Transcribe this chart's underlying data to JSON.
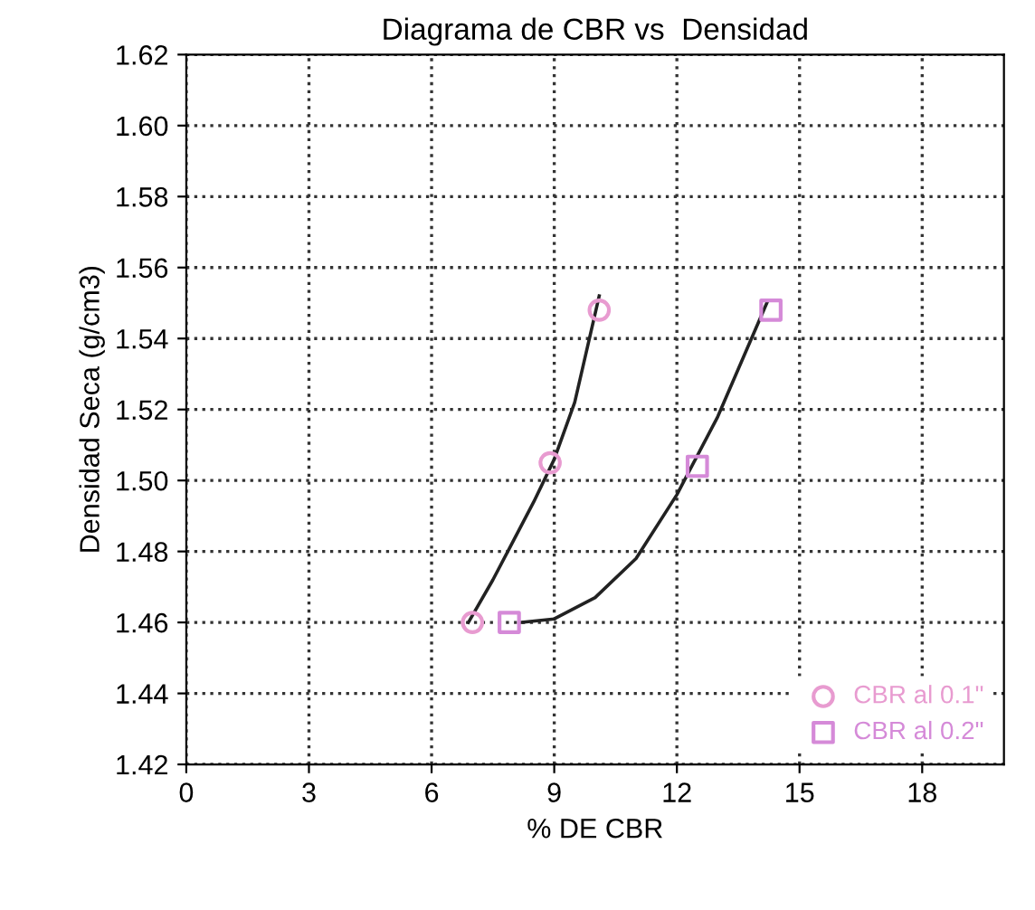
{
  "chart_data": {
    "type": "scatter",
    "title": "Diagrama de CBR vs  Densidad",
    "xlabel": "% DE CBR",
    "ylabel": "Densidad Seca (g/cm3)",
    "xlim": [
      0,
      20
    ],
    "xticks": [
      0,
      3,
      6,
      9,
      12,
      15,
      18
    ],
    "ylim": [
      1.42,
      1.62
    ],
    "yticks": [
      {
        "value": 1.42,
        "label": "1.42"
      },
      {
        "value": 1.44,
        "label": "1.44"
      },
      {
        "value": 1.46,
        "label": "1.46"
      },
      {
        "value": 1.48,
        "label": "1.48"
      },
      {
        "value": 1.5,
        "label": "1.50"
      },
      {
        "value": 1.52,
        "label": "1.52"
      },
      {
        "value": 1.54,
        "label": "1.54"
      },
      {
        "value": 1.56,
        "label": "1.56"
      },
      {
        "value": 1.58,
        "label": "1.58"
      },
      {
        "value": 1.6,
        "label": "1.60"
      },
      {
        "value": 1.62,
        "label": "1.62"
      }
    ],
    "grid": true,
    "legend": "bottom right",
    "series": [
      {
        "name": "CBR al 0.1\"",
        "marker": "circle",
        "color": "#e89bd0",
        "x": [
          7.0,
          8.9,
          10.1
        ],
        "values": [
          1.46,
          1.505,
          1.548
        ]
      },
      {
        "name": "CBR al 0.2\"",
        "marker": "square",
        "color": "#d58ad8",
        "x": [
          7.9,
          12.5,
          14.3
        ],
        "values": [
          1.46,
          1.504,
          1.548
        ]
      },
      {
        "type": "line",
        "color": "#222222",
        "x": [
          6.9,
          7.5,
          8.0,
          8.5,
          9.0,
          9.5,
          10.1
        ],
        "values": [
          1.46,
          1.472,
          1.483,
          1.494,
          1.506,
          1.522,
          1.552
        ]
      },
      {
        "type": "line",
        "color": "#222222",
        "x": [
          8.2,
          9.0,
          10.0,
          11.0,
          12.0,
          13.0,
          14.2
        ],
        "values": [
          1.46,
          1.461,
          1.467,
          1.478,
          1.496,
          1.518,
          1.55
        ]
      }
    ]
  }
}
